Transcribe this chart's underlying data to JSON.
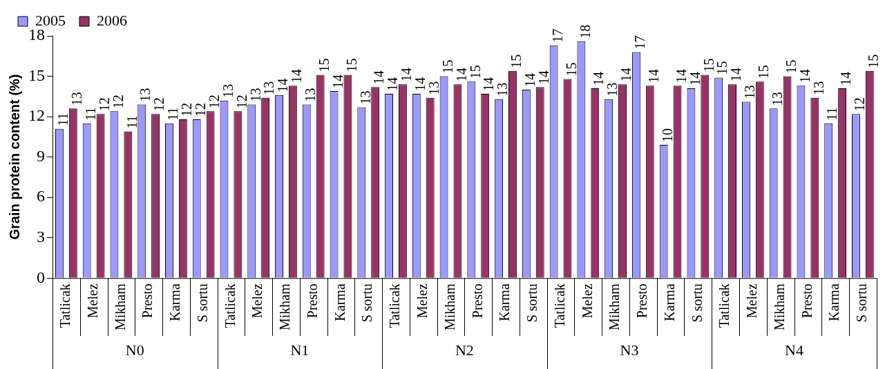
{
  "chart_data": {
    "type": "bar",
    "ylabel": "Grain protein content (%)",
    "categories": [
      "Tatlicak",
      "Melez",
      "Mikham",
      "Presto",
      "Karma",
      "S sortu",
      "Tatlicak",
      "Melez",
      "Mikham",
      "Presto",
      "Karma",
      "S sortu",
      "Tatlicak",
      "Melez",
      "Mikham",
      "Presto",
      "Karma",
      "S sortu",
      "Tatlicak",
      "Melez",
      "Mikham",
      "Presto",
      "Karma",
      "S sortu",
      "Tatlicak",
      "Melez",
      "Mikham",
      "Presto",
      "Karma",
      "S sortu"
    ],
    "series": [
      {
        "name": "2005",
        "color": "#9999ff",
        "values": [
          11.1,
          11.5,
          12.4,
          12.9,
          11.5,
          11.8,
          13.2,
          12.9,
          13.6,
          12.9,
          13.9,
          12.7,
          13.7,
          13.7,
          15.0,
          14.6,
          13.3,
          14.0,
          17.3,
          17.6,
          13.3,
          16.8,
          9.9,
          14.1,
          14.9,
          13.1,
          12.6,
          14.3,
          11.5,
          12.2
        ],
        "value_labels": [
          "11",
          "11",
          "12",
          "13",
          "11",
          "12",
          "13",
          "13",
          "14",
          "13",
          "14",
          "13",
          "14",
          "14",
          "15",
          "15",
          "13",
          "14",
          "17",
          "18",
          "13",
          "17",
          "10",
          "14",
          "15",
          "13",
          "13",
          "14",
          "11",
          "12"
        ]
      },
      {
        "name": "2006",
        "color": "#993366",
        "values": [
          12.6,
          12.2,
          10.9,
          12.2,
          11.8,
          12.4,
          12.4,
          13.4,
          14.3,
          15.1,
          15.1,
          14.2,
          14.4,
          13.4,
          14.4,
          13.7,
          15.4,
          14.2,
          14.8,
          14.1,
          14.4,
          14.3,
          14.3,
          15.1,
          14.4,
          14.6,
          15.0,
          13.4,
          14.1,
          15.4
        ],
        "value_labels": [
          "13",
          "12",
          "11",
          "12",
          "12",
          "12",
          "12",
          "13",
          "14",
          "15",
          "15",
          "14",
          "14",
          "13",
          "14",
          "14",
          "15",
          "14",
          "15",
          "14",
          "14",
          "14",
          "14",
          "15",
          "14",
          "15",
          "15",
          "13",
          "14",
          "15"
        ]
      }
    ],
    "annotations": [
      "N0",
      "N1",
      "N2",
      "N3",
      "N4"
    ],
    "ylim": [
      0,
      18
    ],
    "yticks": [
      0,
      3,
      6,
      9,
      12,
      15,
      18
    ],
    "grid": false,
    "legend": "top left"
  }
}
